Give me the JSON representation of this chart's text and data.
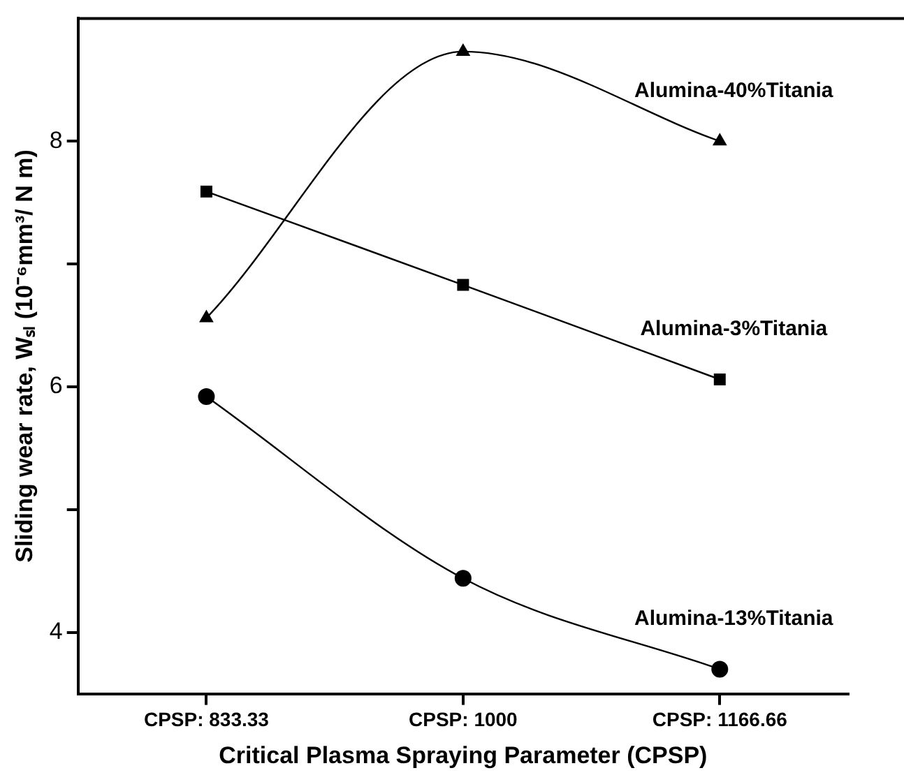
{
  "chart_data": {
    "type": "line",
    "xlabel": "Critical Plasma Spraying Parameter (CPSP)",
    "ylabel": "Sliding wear rate, Wₛₗ (10⁻⁶mm³/ N m)",
    "categories": [
      "CPSP: 833.33",
      "CPSP: 1000",
      "CPSP: 1166.66"
    ],
    "series": [
      {
        "name": "Alumina-40%Titania",
        "color": "#000000",
        "marker": "triangle",
        "values": [
          6.56,
          8.73,
          8.0
        ]
      },
      {
        "name": "Alumina-3%Titania",
        "color": "#000000",
        "marker": "square",
        "values": [
          7.59,
          6.83,
          6.06
        ]
      },
      {
        "name": "Alumina-13%Titania",
        "color": "#000000",
        "marker": "circle",
        "values": [
          5.92,
          4.44,
          3.7
        ]
      }
    ],
    "ylim": [
      3.5,
      9.0
    ],
    "yticks": [
      4,
      {
        "value": 5,
        "label": null
      },
      6,
      {
        "value": 7,
        "label": null
      },
      8
    ],
    "grid": false,
    "legend": false,
    "line_style": "solid"
  }
}
